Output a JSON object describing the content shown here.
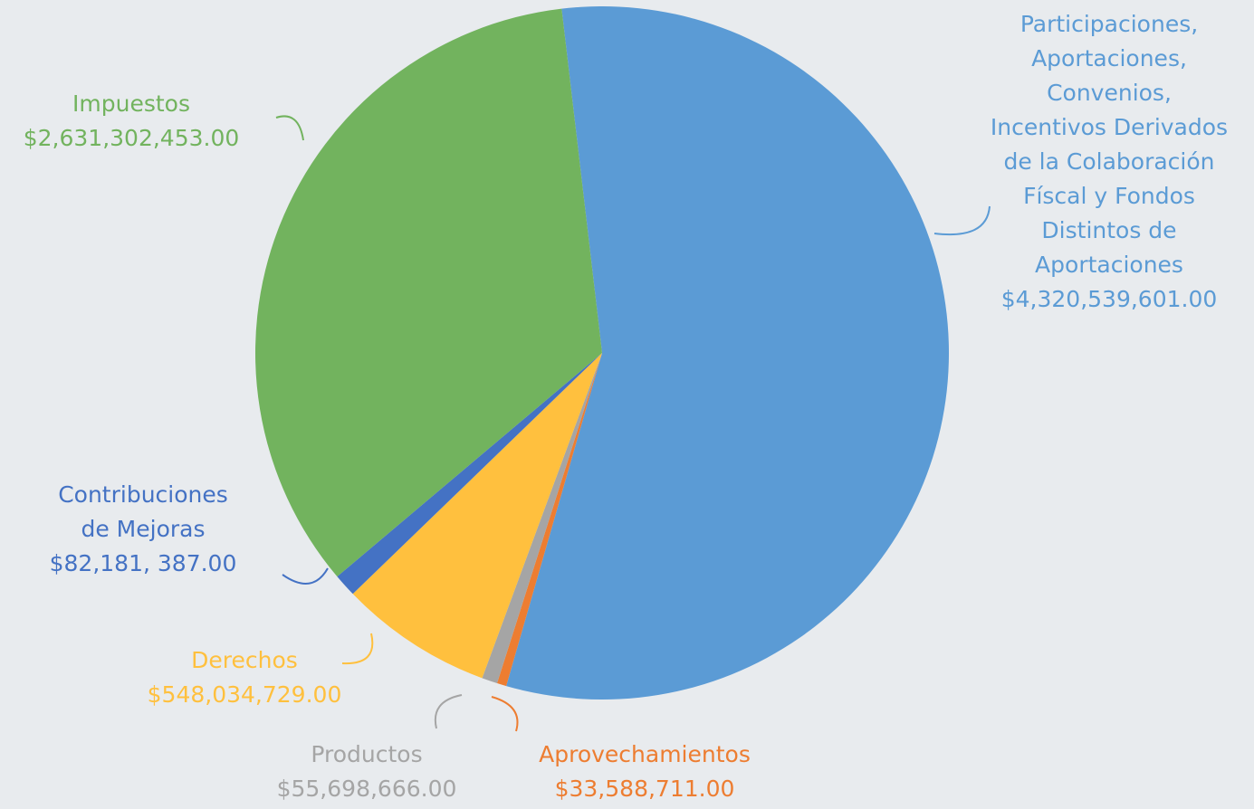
{
  "chart_data": {
    "type": "pie",
    "categories": [
      [
        "Participaciones,",
        "Aportaciones,",
        "Convenios,",
        "Incentivos Derivados",
        "de la Colaboración",
        "Físcal y Fondos",
        "Distintos de",
        "Aportaciones"
      ],
      [
        "Aprovechamientos"
      ],
      [
        "Productos"
      ],
      [
        "Derechos"
      ],
      [
        "Contribuciones",
        "de Mejoras"
      ],
      [
        "Impuestos"
      ]
    ],
    "values": [
      4320539601,
      33588711,
      55698666,
      548034729,
      82181387,
      2631302453
    ],
    "value_labels": [
      "$4,320,539,601.00",
      "$33,588,711.00",
      "$55,698,666.00",
      "$548,034,729.00",
      "$82,181, 387.00",
      "$2,631,302,453.00"
    ],
    "colors": [
      "#5b9bd5",
      "#ed7d31",
      "#a5a5a5",
      "#ffc03e",
      "#4472c4",
      "#72b35e"
    ]
  }
}
